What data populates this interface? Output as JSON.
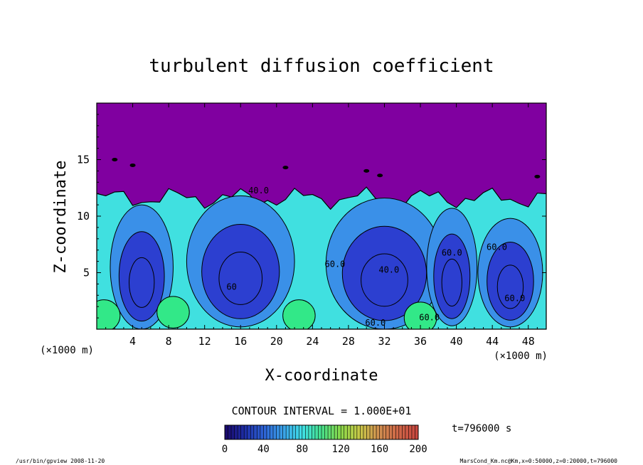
{
  "chart_data": {
    "type": "heatmap",
    "title": "turbulent diffusion coefficient",
    "xlabel": "X-coordinate",
    "ylabel": "Z-coordinate",
    "x_unit": "(×1000 m)",
    "y_unit": "(×1000 m)",
    "xlim": [
      0,
      50
    ],
    "ylim": [
      0,
      20
    ],
    "x_ticks": [
      4,
      8,
      12,
      16,
      20,
      24,
      28,
      32,
      36,
      40,
      44,
      48
    ],
    "y_ticks": [
      5,
      10,
      15
    ],
    "contour_interval_text": "CONTOUR INTERVAL = 1.000E+01",
    "contour_labels": [
      {
        "text": "40.0",
        "x": 18.0,
        "z": 12.0
      },
      {
        "text": "60.0",
        "x": 31.0,
        "z": 0.3
      },
      {
        "text": "40.0",
        "x": 32.5,
        "z": 5.0
      },
      {
        "text": "60.0",
        "x": 26.5,
        "z": 5.5
      },
      {
        "text": "60.0",
        "x": 37.0,
        "z": 0.8
      },
      {
        "text": "60.0",
        "x": 39.5,
        "z": 6.5
      },
      {
        "text": "60.0",
        "x": 44.5,
        "z": 7.0
      },
      {
        "text": "60.0",
        "x": 46.5,
        "z": 2.5
      },
      {
        "text": "60",
        "x": 15.0,
        "z": 3.5
      }
    ],
    "colorbar": {
      "min": 0,
      "max": 200,
      "ticks": [
        0,
        40,
        80,
        120,
        160,
        200
      ],
      "colors": [
        "#1a0a6e",
        "#1e2fa8",
        "#2e64d6",
        "#3aa2e8",
        "#40e0e6",
        "#46e08a",
        "#8ad84a",
        "#c8c848",
        "#d09050",
        "#d06848",
        "#c84840"
      ]
    },
    "time_label": "t=796000 s",
    "colors": {
      "background": "#8000a0",
      "low": "#2c3fd0",
      "mid": "#3a90e8",
      "high": "#40e0e0",
      "top": "#32e888"
    }
  },
  "footer": {
    "left": "/usr/bin/gpview   2008-11-20",
    "right": "MarsCond_Km.nc@Km,x=0:50000,z=0:20000,t=796000"
  }
}
